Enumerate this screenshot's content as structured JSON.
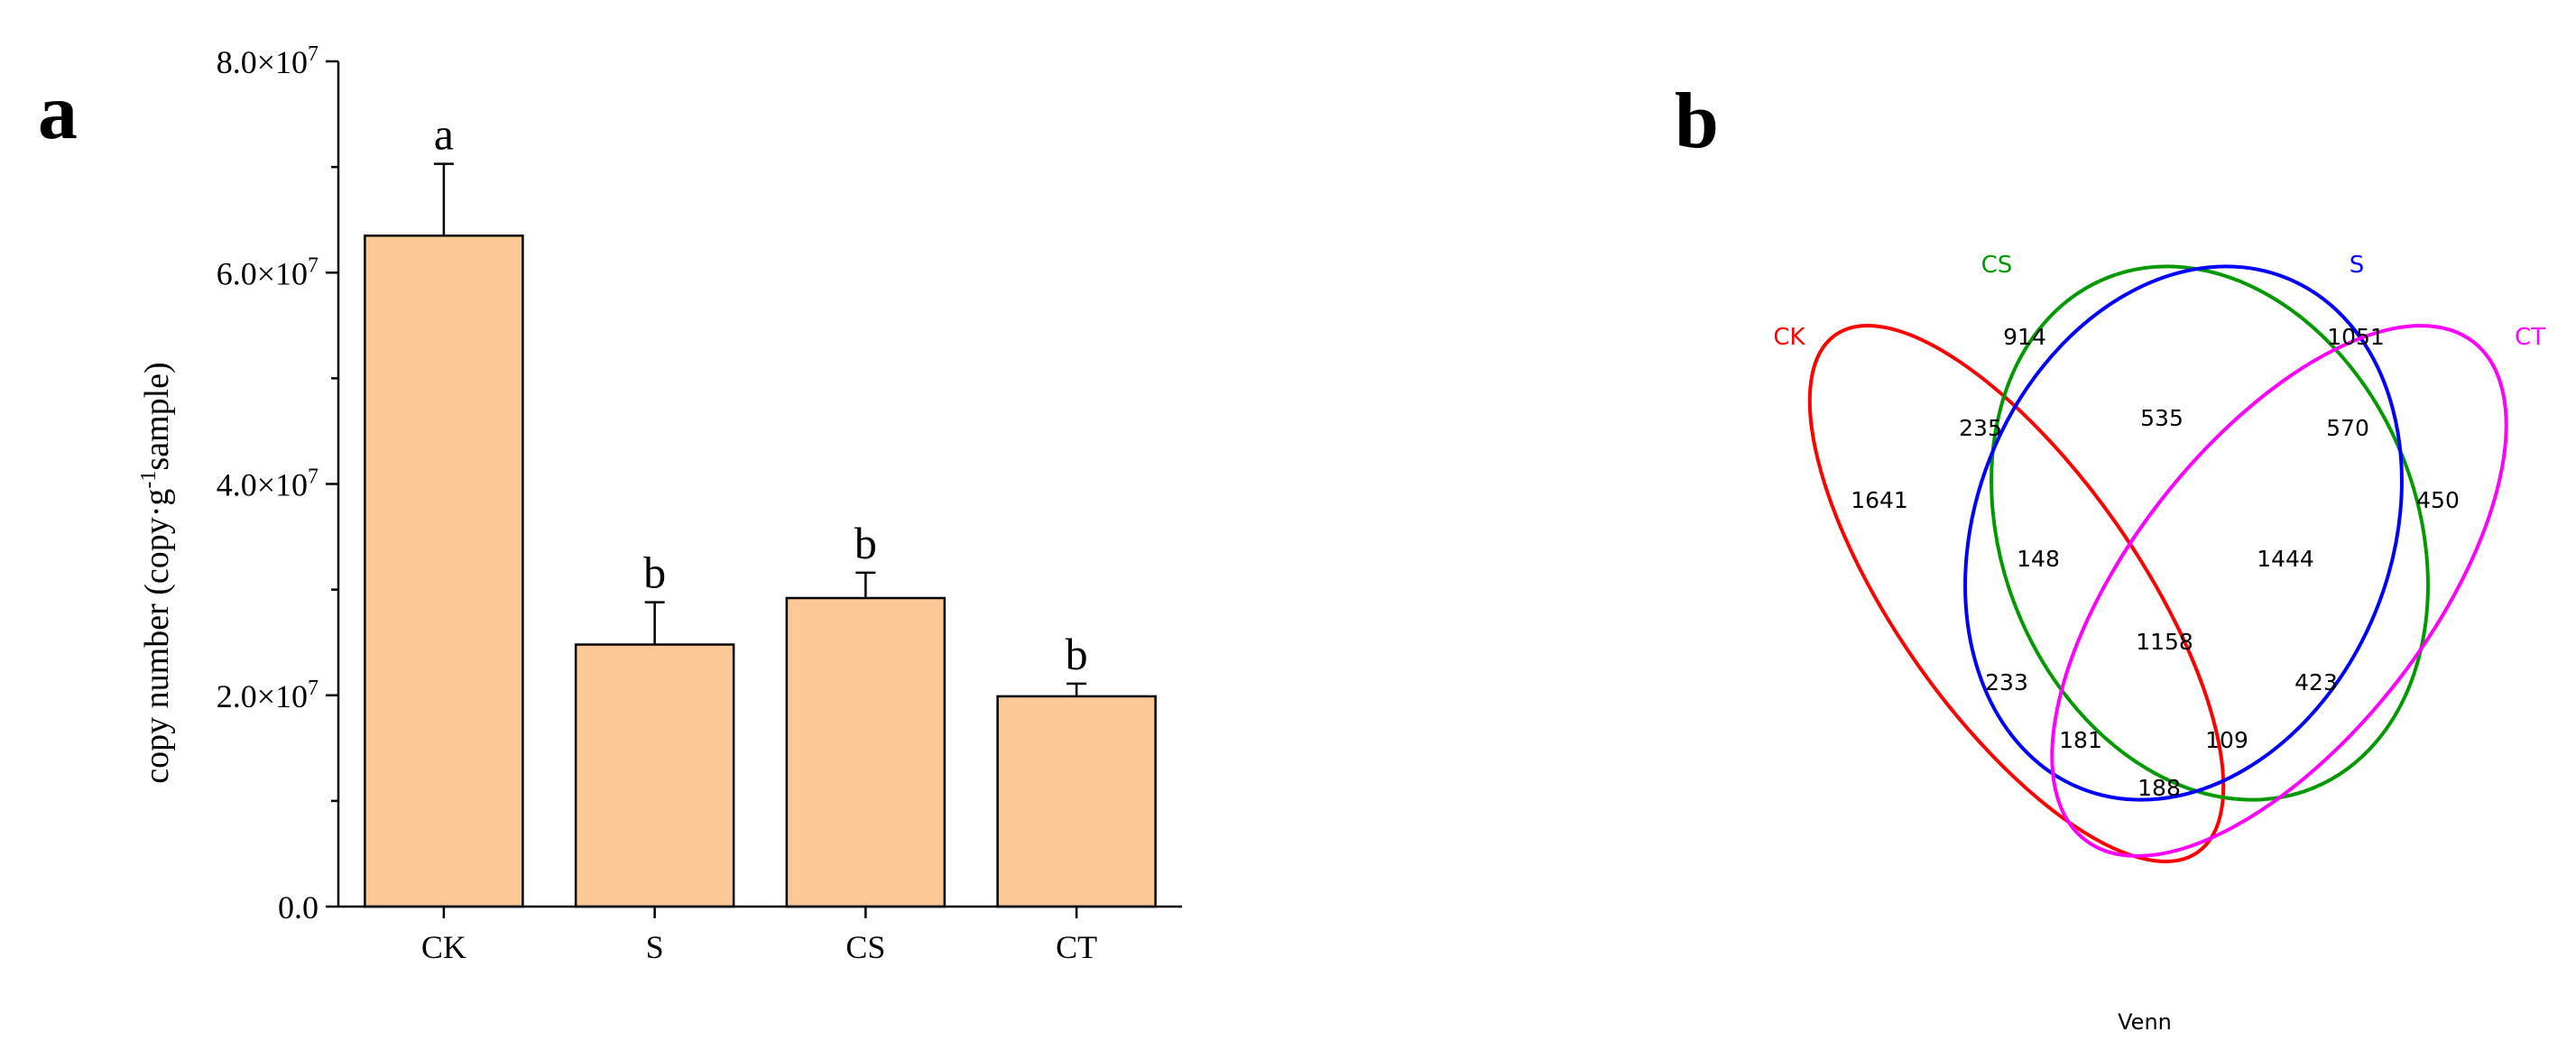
{
  "panel_a_label": "a",
  "panel_b_label": "b",
  "chart_data": [
    {
      "type": "bar",
      "categories": [
        "CK",
        "S",
        "CS",
        "CT"
      ],
      "values": [
        63500000,
        24800000,
        29200000,
        19900000
      ],
      "errors": [
        6800000,
        4000000,
        2400000,
        1200000
      ],
      "significance_letters": [
        "a",
        "b",
        "b",
        "b"
      ],
      "ylabel_main": "copy number (copy·g",
      "ylabel_sup": "-1",
      "ylabel_tail": "sample)",
      "xlabel": "",
      "ylim": [
        0,
        80000000
      ],
      "yticks": [
        {
          "value": 0,
          "label": "0.0"
        },
        {
          "value": 20000000,
          "mantissa": "2.0×10",
          "exp": "7"
        },
        {
          "value": 40000000,
          "mantissa": "4.0×10",
          "exp": "7"
        },
        {
          "value": 60000000,
          "mantissa": "6.0×10",
          "exp": "7"
        },
        {
          "value": 80000000,
          "mantissa": "8.0×10",
          "exp": "7"
        }
      ],
      "bar_color": "#FBC896",
      "edge_color": "#000000",
      "grid": false
    },
    {
      "type": "venn",
      "title": "Venn",
      "sets": [
        {
          "name": "CK",
          "color": "#FF0000"
        },
        {
          "name": "CS",
          "color": "#009900"
        },
        {
          "name": "S",
          "color": "#0000FF"
        },
        {
          "name": "CT",
          "color": "#FF00FF"
        }
      ],
      "regions": [
        {
          "sets": [
            "CK"
          ],
          "value": 1641
        },
        {
          "sets": [
            "CS"
          ],
          "value": 914
        },
        {
          "sets": [
            "S"
          ],
          "value": 1051
        },
        {
          "sets": [
            "CT"
          ],
          "value": 450
        },
        {
          "sets": [
            "CK",
            "CS"
          ],
          "value": 235
        },
        {
          "sets": [
            "CS",
            "S"
          ],
          "value": 535
        },
        {
          "sets": [
            "S",
            "CT"
          ],
          "value": 570
        },
        {
          "sets": [
            "CK",
            "CS",
            "S"
          ],
          "value": 148
        },
        {
          "sets": [
            "CS",
            "S",
            "CT"
          ],
          "value": 1444
        },
        {
          "sets": [
            "CK",
            "CS",
            "S",
            "CT"
          ],
          "value": 1158
        },
        {
          "sets": [
            "CK",
            "S"
          ],
          "value": 233
        },
        {
          "sets": [
            "CS",
            "CT"
          ],
          "value": 423
        },
        {
          "sets": [
            "CK",
            "S",
            "CT"
          ],
          "value": 181
        },
        {
          "sets": [
            "CK",
            "CS",
            "CT"
          ],
          "value": 109
        },
        {
          "sets": [
            "CK",
            "CT"
          ],
          "value": 188
        }
      ]
    }
  ]
}
